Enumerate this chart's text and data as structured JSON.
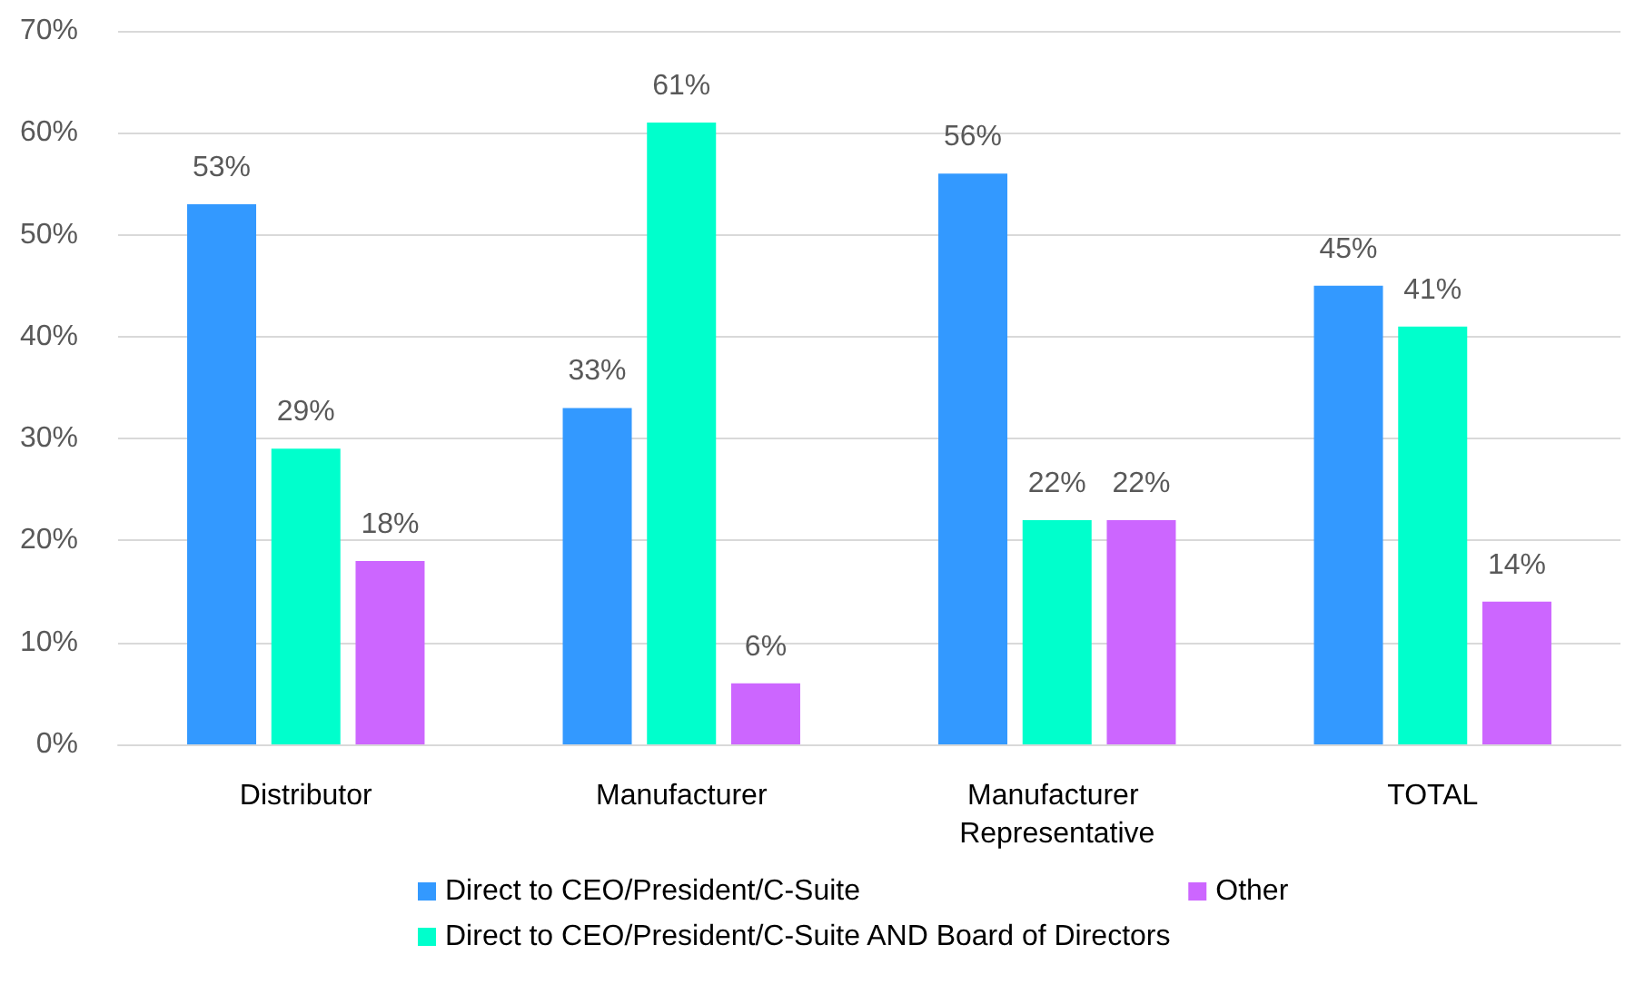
{
  "chart_data": {
    "type": "bar",
    "categories": [
      "Distributor",
      "Manufacturer",
      "Manufacturer Representative",
      "TOTAL"
    ],
    "series": [
      {
        "name": "Direct to CEO/President/C-Suite",
        "color": "#3399ff",
        "values": [
          53,
          33,
          56,
          45
        ],
        "value_labels": [
          "53%",
          "33%",
          "56%",
          "45%"
        ]
      },
      {
        "name": "Direct to CEO/President/C-Suite AND Board of Directors",
        "color": "#00ffcc",
        "values": [
          29,
          61,
          22,
          41
        ],
        "value_labels": [
          "29%",
          "61%",
          "22%",
          "41%"
        ]
      },
      {
        "name": "Other",
        "color": "#cc66ff",
        "values": [
          18,
          6,
          22,
          14
        ],
        "value_labels": [
          "18%",
          "6%",
          "22%",
          "14%"
        ]
      }
    ],
    "ylim": [
      0,
      70
    ],
    "yticks": [
      {
        "value": 0,
        "label": "0%"
      },
      {
        "value": 10,
        "label": "10%"
      },
      {
        "value": 20,
        "label": "20%"
      },
      {
        "value": 30,
        "label": "30%"
      },
      {
        "value": 40,
        "label": "40%"
      },
      {
        "value": 50,
        "label": "50%"
      },
      {
        "value": 60,
        "label": "60%"
      },
      {
        "value": 70,
        "label": "70%"
      }
    ],
    "grid": "y",
    "legend": "bottom"
  }
}
